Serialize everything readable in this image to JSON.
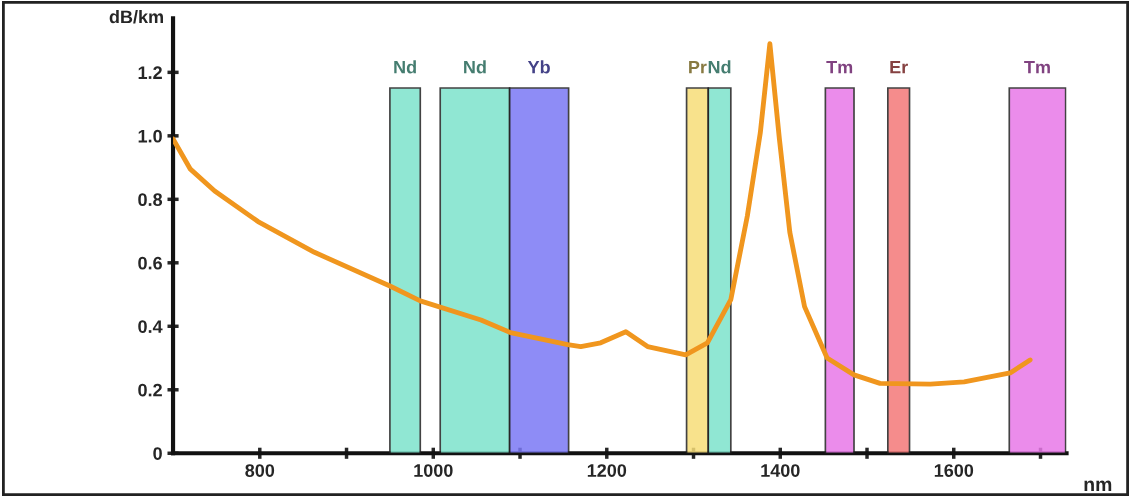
{
  "chart_data": {
    "type": "line",
    "ylabel": "dB/km",
    "xlabel": "nm",
    "xlim": [
      700,
      1730
    ],
    "ylim": [
      0,
      1.37
    ],
    "xticks": [
      800,
      {
        "value": 900,
        "label": null
      },
      1000,
      {
        "value": 1100,
        "label": null
      },
      1200,
      {
        "value": 1300,
        "label": null
      },
      1400,
      {
        "value": 1500,
        "label": null
      },
      1600,
      {
        "value": 1700,
        "label": null
      }
    ],
    "yticks": [
      0,
      0.2,
      0.4,
      0.6,
      0.8,
      {
        "value": 1.0,
        "label": "1.0"
      },
      1.2
    ],
    "grid": false,
    "marker": "none",
    "line_style": "solid",
    "series": [
      {
        "color": "#f0961e",
        "x": [
          700,
          720,
          748,
          798,
          863,
          950,
          985,
          1055,
          1089,
          1155,
          1170,
          1193,
          1222,
          1247,
          1291,
          1316,
          1343,
          1362,
          1377,
          1388,
          1399,
          1411,
          1428,
          1454,
          1485,
          1515,
          1573,
          1612,
          1665,
          1688
        ],
        "values": [
          0.99,
          0.895,
          0.826,
          0.73,
          0.633,
          0.527,
          0.48,
          0.42,
          0.38,
          0.342,
          0.336,
          0.348,
          0.383,
          0.336,
          0.31,
          0.348,
          0.484,
          0.747,
          1.01,
          1.29,
          0.99,
          0.696,
          0.462,
          0.3,
          0.247,
          0.22,
          0.218,
          0.225,
          0.253,
          0.294
        ]
      }
    ],
    "bands": [
      {
        "axis": "x",
        "from": 950,
        "to": 985,
        "label": "Nd",
        "color": "#7de3cc"
      },
      {
        "axis": "x",
        "from": 1008,
        "to": 1088,
        "label": "Nd",
        "color": "#7de3cc"
      },
      {
        "axis": "x",
        "from": 1088,
        "to": 1156,
        "label": "Yb",
        "color": "#7b78f5"
      },
      {
        "axis": "x",
        "from": 1292,
        "to": 1317,
        "label": "Pr",
        "color": "#f7dd78"
      },
      {
        "axis": "x",
        "from": 1317,
        "to": 1343,
        "label": "Nd",
        "color": "#7de3cc"
      },
      {
        "axis": "x",
        "from": 1452,
        "to": 1485,
        "label": "Tm",
        "color": "#e878e8"
      },
      {
        "axis": "x",
        "from": 1524,
        "to": 1549,
        "label": "Er",
        "color": "#f47878"
      },
      {
        "axis": "x",
        "from": 1664,
        "to": 1729,
        "label": "Tm",
        "color": "#e878e8"
      }
    ]
  }
}
